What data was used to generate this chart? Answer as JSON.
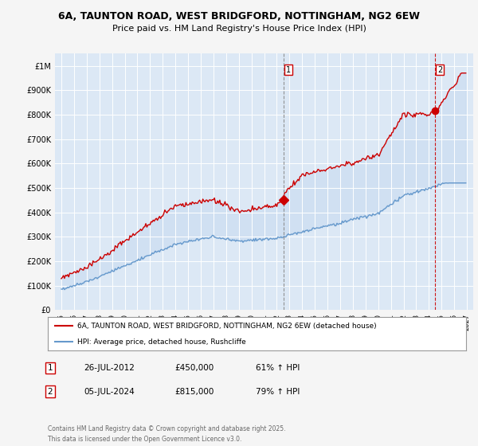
{
  "title": "6A, TAUNTON ROAD, WEST BRIDGFORD, NOTTINGHAM, NG2 6EW",
  "subtitle": "Price paid vs. HM Land Registry's House Price Index (HPI)",
  "red_label": "6A, TAUNTON ROAD, WEST BRIDGFORD, NOTTINGHAM, NG2 6EW (detached house)",
  "blue_label": "HPI: Average price, detached house, Rushcliffe",
  "footnote": "Contains HM Land Registry data © Crown copyright and database right 2025.\nThis data is licensed under the Open Government Licence v3.0.",
  "transactions": [
    {
      "num": 1,
      "date": "26-JUL-2012",
      "price": "£450,000",
      "hpi": "61% ↑ HPI",
      "x_year": 2012.56,
      "y_val": 450000,
      "marker": "D",
      "vline_color": "#888888",
      "vline_style": "--"
    },
    {
      "num": 2,
      "date": "05-JUL-2024",
      "price": "£815,000",
      "hpi": "79% ↑ HPI",
      "x_year": 2024.51,
      "y_val": 815000,
      "marker": "o",
      "vline_color": "#cc0000",
      "vline_style": "--"
    }
  ],
  "ylim": [
    0,
    1050000
  ],
  "xlim": [
    1994.5,
    2027.5
  ],
  "bg_color": "#f5f5f5",
  "plot_bg_color": "#dce8f5",
  "red_color": "#cc0000",
  "blue_color": "#6699cc",
  "grid_color": "#ffffff",
  "fill_color": "#c5daf0",
  "yticks": [
    0,
    100000,
    200000,
    300000,
    400000,
    500000,
    600000,
    700000,
    800000,
    900000,
    1000000
  ],
  "ytick_labels": [
    "£0",
    "£100K",
    "£200K",
    "£300K",
    "£400K",
    "£500K",
    "£600K",
    "£700K",
    "£800K",
    "£900K",
    "£1M"
  ],
  "xticks": [
    1995,
    1996,
    1997,
    1998,
    1999,
    2000,
    2001,
    2002,
    2003,
    2004,
    2005,
    2006,
    2007,
    2008,
    2009,
    2010,
    2011,
    2012,
    2013,
    2014,
    2015,
    2016,
    2017,
    2018,
    2019,
    2020,
    2021,
    2022,
    2023,
    2024,
    2025,
    2026,
    2027
  ]
}
